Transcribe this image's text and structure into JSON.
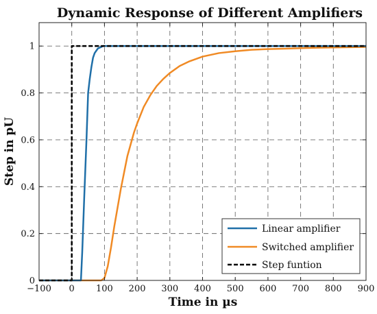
{
  "chart_data": {
    "type": "line",
    "title": "Dynamic Response of Different Amplifiers",
    "xlabel": "Time in µs",
    "ylabel": "Step in pU",
    "xlim": [
      -100,
      900
    ],
    "ylim": [
      0,
      1.1
    ],
    "xticks": [
      -100,
      0,
      100,
      200,
      300,
      400,
      500,
      600,
      700,
      800,
      900
    ],
    "xtick_labels": [
      "−100",
      "0",
      "100",
      "200",
      "300",
      "400",
      "500",
      "600",
      "700",
      "800",
      "900"
    ],
    "yticks": [
      0,
      0.2,
      0.4,
      0.6,
      0.8,
      1
    ],
    "ytick_labels": [
      "0",
      "0.2",
      "0.4",
      "0.6",
      "0.8",
      "1"
    ],
    "grid": true,
    "legend_position": "bottom-right",
    "series": [
      {
        "name": "Linear amplifier",
        "color": "#1f6fa8",
        "dash": "solid",
        "x": [
          -100,
          28,
          32,
          38,
          45,
          50,
          55,
          60,
          65,
          70,
          75,
          80,
          85,
          90,
          95,
          100,
          900
        ],
        "y": [
          0,
          0,
          0.12,
          0.35,
          0.6,
          0.8,
          0.86,
          0.91,
          0.95,
          0.97,
          0.98,
          0.99,
          0.993,
          0.996,
          1,
          1,
          1
        ]
      },
      {
        "name": "Switched amplifier",
        "color": "#f08a24",
        "dash": "solid",
        "x": [
          -100,
          90,
          100,
          110,
          120,
          130,
          140,
          150,
          160,
          170,
          180,
          190,
          200,
          220,
          240,
          260,
          280,
          300,
          330,
          360,
          400,
          450,
          500,
          550,
          600,
          650,
          700,
          750,
          800,
          850,
          900
        ],
        "y": [
          0,
          0,
          0.01,
          0.06,
          0.14,
          0.23,
          0.31,
          0.39,
          0.46,
          0.53,
          0.58,
          0.63,
          0.67,
          0.74,
          0.79,
          0.83,
          0.86,
          0.885,
          0.915,
          0.935,
          0.955,
          0.97,
          0.978,
          0.984,
          0.987,
          0.989,
          0.991,
          0.993,
          0.994,
          0.995,
          0.996
        ]
      },
      {
        "name": "Step funtion",
        "color": "#000000",
        "dash": "dashed",
        "x": [
          -100,
          0,
          0,
          900
        ],
        "y": [
          0,
          0,
          1,
          1
        ]
      }
    ]
  }
}
